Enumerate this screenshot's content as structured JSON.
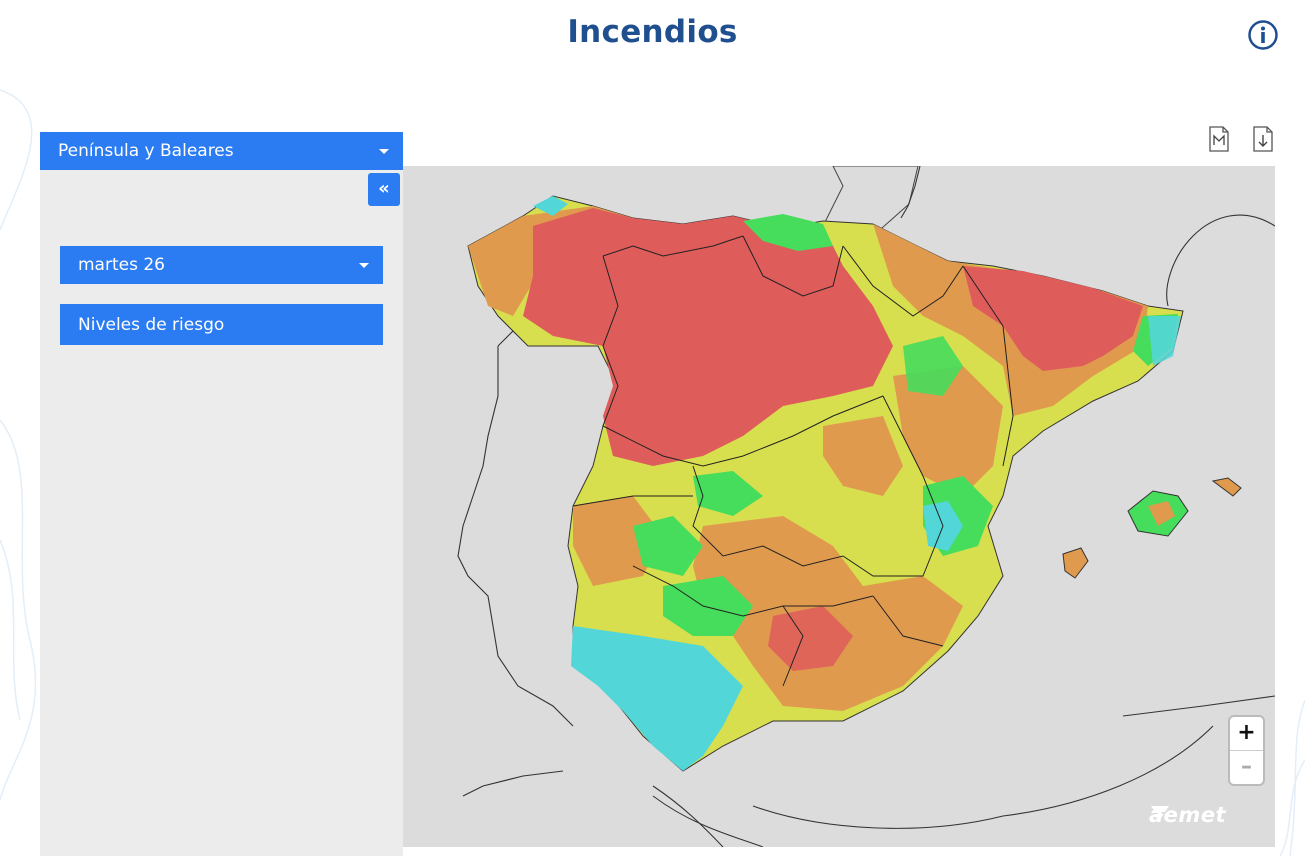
{
  "header": {
    "title": "Incendios"
  },
  "sidebar": {
    "region_select": {
      "value": "Península y Baleares"
    },
    "collapse_label": "«",
    "day_select": {
      "value": "martes 26"
    },
    "levels_button": "Niveles de riesgo"
  },
  "map": {
    "zoom_in": "+",
    "zoom_out": "–",
    "logo_text": "aemet",
    "toolbar_icons": [
      "map-document-icon",
      "download-document-icon"
    ],
    "colors": {
      "very_low": "#53d6d8",
      "low": "#46dc5c",
      "moderate": "#d8df4e",
      "high": "#e09a4e",
      "very_high": "#de5c5a",
      "sea": "#dcdcdc"
    }
  }
}
